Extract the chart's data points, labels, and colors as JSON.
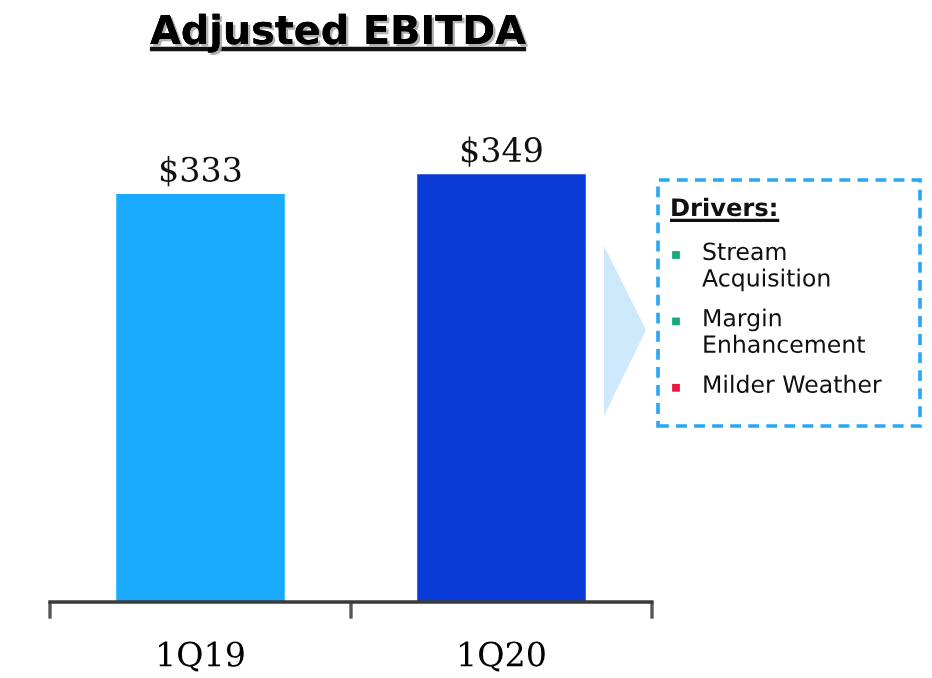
{
  "chart_data": {
    "type": "bar",
    "title": "Adjusted EBITDA",
    "categories": [
      "1Q19",
      "1Q20"
    ],
    "values": [
      333,
      349
    ],
    "colors": [
      "#1aabff",
      "#0b3bd6"
    ],
    "value_labels": [
      "$333",
      "$349"
    ],
    "annotations": [
      "Drivers:",
      "Stream Acquisition",
      "Margin Enhancement",
      "Milder Weather"
    ]
  }
}
